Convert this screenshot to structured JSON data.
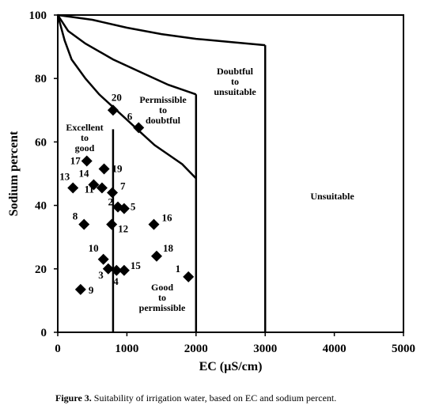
{
  "chart_data": {
    "type": "scatter",
    "title": "",
    "xlabel": "EC (µS/cm)",
    "ylabel": "Sodium percent",
    "xlim": [
      0,
      5000
    ],
    "ylim": [
      0,
      100
    ],
    "xticks": [
      "0",
      "1000",
      "2000",
      "3000",
      "4000",
      "5000"
    ],
    "yticks": [
      "0",
      "20",
      "40",
      "60",
      "80",
      "100"
    ],
    "grid": false,
    "marker": "diamond",
    "marker_color": "#000000",
    "points": [
      {
        "label": "1",
        "x": 1890,
        "y": 17.5
      },
      {
        "label": "2",
        "x": 870,
        "y": 39.5
      },
      {
        "label": "3",
        "x": 730,
        "y": 20
      },
      {
        "label": "4",
        "x": 850,
        "y": 19.5
      },
      {
        "label": "5",
        "x": 960,
        "y": 39
      },
      {
        "label": "6",
        "x": 1170,
        "y": 64.5
      },
      {
        "label": "7",
        "x": 790,
        "y": 44
      },
      {
        "label": "8",
        "x": 380,
        "y": 34
      },
      {
        "label": "9",
        "x": 330,
        "y": 13.5
      },
      {
        "label": "10",
        "x": 660,
        "y": 23
      },
      {
        "label": "11",
        "x": 640,
        "y": 45.5
      },
      {
        "label": "12",
        "x": 780,
        "y": 34
      },
      {
        "label": "13",
        "x": 220,
        "y": 45.5
      },
      {
        "label": "14",
        "x": 520,
        "y": 46.5
      },
      {
        "label": "15",
        "x": 960,
        "y": 19.5
      },
      {
        "label": "16",
        "x": 1390,
        "y": 34
      },
      {
        "label": "17",
        "x": 420,
        "y": 54
      },
      {
        "label": "18",
        "x": 1430,
        "y": 24
      },
      {
        "label": "19",
        "x": 670,
        "y": 51.5
      },
      {
        "label": "20",
        "x": 800,
        "y": 70
      }
    ],
    "curves": [
      {
        "name": "curve-excellent",
        "points": [
          [
            0,
            100
          ],
          [
            100,
            92
          ],
          [
            200,
            86
          ],
          [
            400,
            80
          ],
          [
            600,
            75
          ],
          [
            800,
            71
          ],
          [
            1000,
            67
          ],
          [
            1200,
            63
          ],
          [
            1400,
            59
          ],
          [
            1600,
            56
          ],
          [
            1800,
            53
          ],
          [
            2000,
            48.5
          ]
        ]
      },
      {
        "name": "curve-permissible",
        "points": [
          [
            0,
            100
          ],
          [
            150,
            95
          ],
          [
            400,
            91
          ],
          [
            800,
            86
          ],
          [
            1200,
            82
          ],
          [
            1600,
            78
          ],
          [
            2000,
            75
          ]
        ]
      },
      {
        "name": "curve-doubtful",
        "points": [
          [
            0,
            100
          ],
          [
            500,
            98.5
          ],
          [
            1000,
            96
          ],
          [
            1500,
            94
          ],
          [
            2000,
            92.5
          ],
          [
            2500,
            91.5
          ],
          [
            3000,
            90.5
          ]
        ]
      }
    ],
    "verticals": [
      {
        "name": "line-ec-750",
        "x": 800,
        "y_top": 64
      },
      {
        "name": "line-ec-2000",
        "x": 2000,
        "y_top": 75
      },
      {
        "name": "line-ec-3000",
        "x": 3000,
        "y_top": 90.5
      }
    ],
    "regions": [
      {
        "name": "region-excellent-to-good",
        "lines": [
          "Excellent",
          "to",
          "good"
        ]
      },
      {
        "name": "region-permissible-to-doubtful",
        "lines": [
          "Permissible",
          "to",
          "doubtful"
        ]
      },
      {
        "name": "region-doubtful-to-unsuitable",
        "lines": [
          "Doubtful",
          "to",
          "unsuitable"
        ]
      },
      {
        "name": "region-unsuitable",
        "lines": [
          "Unsuitable"
        ]
      },
      {
        "name": "region-good-to-permissible",
        "lines": [
          "Good",
          "to",
          "permissible"
        ]
      }
    ]
  },
  "caption": {
    "prefix": "Figure 3.",
    "text": " Suitability of irrigation water, based on EC and sodium percent."
  }
}
